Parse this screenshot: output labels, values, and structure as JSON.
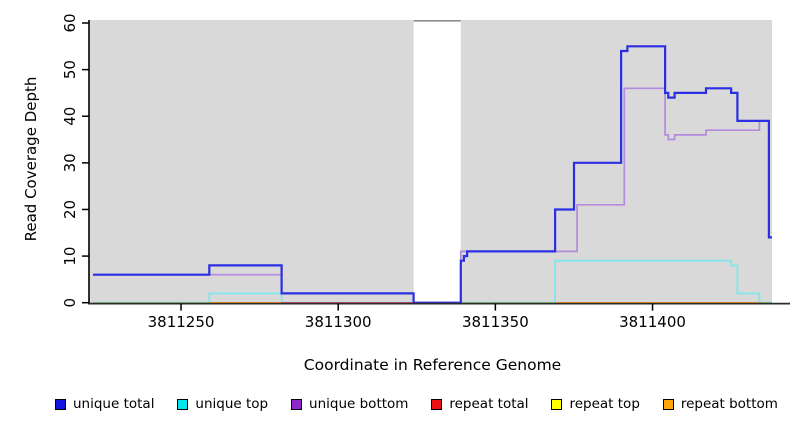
{
  "chart_data": {
    "type": "line",
    "subtype": "step-coverage",
    "title": "",
    "xlabel": "Coordinate in Reference Genome",
    "ylabel": "Read Coverage Depth",
    "x_ticks": [
      3811250,
      3811300,
      3811350,
      3811400
    ],
    "y_ticks": [
      0,
      10,
      20,
      30,
      40,
      50,
      60
    ],
    "xlim": [
      3811222,
      3811438
    ],
    "ylim": [
      0,
      60.6
    ],
    "grid": false,
    "plot_bg_color": "#d9d9d9",
    "axis_color": "#000000",
    "masked_region": {
      "name": "white-gap",
      "x0": 3811324,
      "x1": 3811339,
      "fill": "#ffffff",
      "top_border_color": "#8c8c8c"
    },
    "series": [
      {
        "name": "unique top",
        "color": "#7fe8ec",
        "line_width": 1.8,
        "points": [
          [
            3811222,
            0
          ],
          [
            3811259,
            2
          ],
          [
            3811282,
            0
          ],
          [
            3811369,
            9
          ],
          [
            3811425,
            8
          ],
          [
            3811427,
            2
          ],
          [
            3811434,
            0
          ],
          [
            3811438,
            0
          ]
        ]
      },
      {
        "name": "unique bottom",
        "color": "#b48ade",
        "line_width": 1.7,
        "points": [
          [
            3811222,
            6
          ],
          [
            3811282,
            2
          ],
          [
            3811324,
            0
          ],
          [
            3811339,
            11
          ],
          [
            3811376,
            21
          ],
          [
            3811391,
            46
          ],
          [
            3811404,
            36
          ],
          [
            3811405,
            35
          ],
          [
            3811407,
            36
          ],
          [
            3811417,
            37
          ],
          [
            3811434,
            39
          ],
          [
            3811437,
            14
          ],
          [
            3811438,
            14
          ]
        ]
      },
      {
        "name": "unique total",
        "color": "#2c2ee2",
        "line_width": 2.2,
        "points": [
          [
            3811222,
            6
          ],
          [
            3811259,
            8
          ],
          [
            3811282,
            2
          ],
          [
            3811324,
            0
          ],
          [
            3811339,
            9
          ],
          [
            3811340,
            10
          ],
          [
            3811341,
            11
          ],
          [
            3811369,
            20
          ],
          [
            3811375,
            30
          ],
          [
            3811390,
            54
          ],
          [
            3811392,
            55
          ],
          [
            3811404,
            45
          ],
          [
            3811405,
            44
          ],
          [
            3811407,
            45
          ],
          [
            3811417,
            46
          ],
          [
            3811425,
            45
          ],
          [
            3811427,
            39
          ],
          [
            3811437,
            14
          ],
          [
            3811438,
            14
          ]
        ]
      }
    ],
    "baseline_segments": [
      {
        "name": "baseline-green",
        "x0": 3811222,
        "x1": 3811259,
        "value": 0,
        "color": "#96cc8e"
      },
      {
        "name": "baseline-orange",
        "x0": 3811259,
        "x1": 3811282,
        "value": 0,
        "color": "#ff9d1e"
      },
      {
        "name": "baseline-red",
        "x0": 3811282,
        "x1": 3811324,
        "value": 0,
        "color": "#dd5570"
      },
      {
        "name": "baseline-green",
        "x0": 3811339,
        "x1": 3811369,
        "value": 0,
        "color": "#96cc8e"
      },
      {
        "name": "baseline-orange",
        "x0": 3811369,
        "x1": 3811434,
        "value": 0,
        "color": "#ff9d1e"
      },
      {
        "name": "baseline-green",
        "x0": 3811434,
        "x1": 3811438,
        "value": 0,
        "color": "#96cc8e"
      }
    ],
    "legend": {
      "position": "bottom",
      "items": [
        {
          "label": "unique total",
          "color": "#1414e0"
        },
        {
          "label": "unique top",
          "color": "#00e5ee"
        },
        {
          "label": "unique bottom",
          "color": "#9126cb"
        },
        {
          "label": "repeat total",
          "color": "#ee1111"
        },
        {
          "label": "repeat top",
          "color": "#ffff00"
        },
        {
          "label": "repeat bottom",
          "color": "#ffa60a"
        }
      ]
    }
  }
}
